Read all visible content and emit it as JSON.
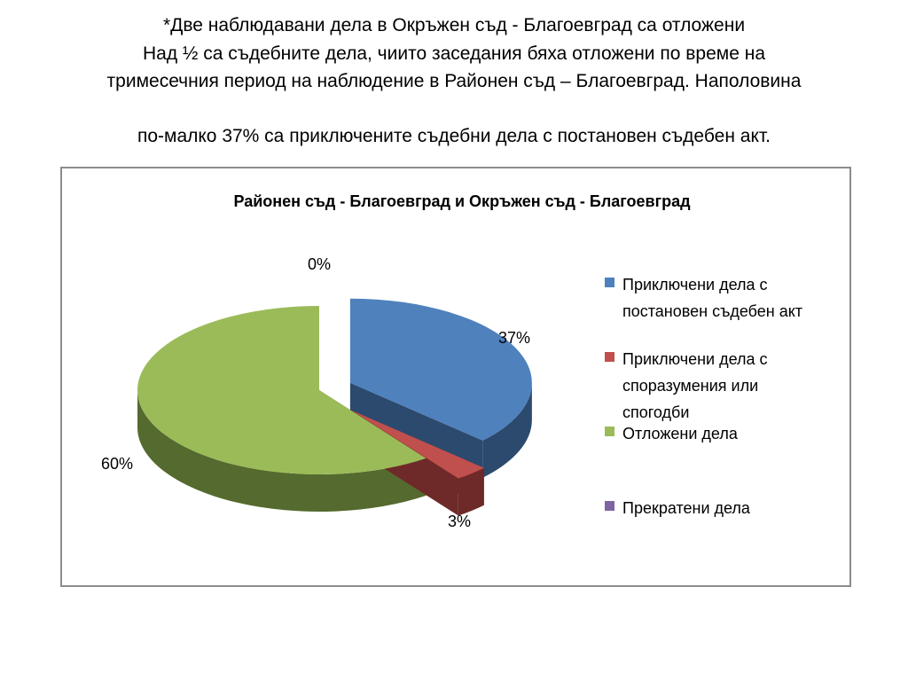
{
  "slide": {
    "line1": "*Две наблюдавани дела в Окръжен съд - Благоевград са отложени",
    "line2": "Над ½ са съдебните дела, чиито заседания бяха отложени по време на",
    "line3": "тримесечния период на наблюдение в Районен съд – Благоевград. Наполовина",
    "line4": "по-малко 37% са приключените съдебни дела с постановен съдебен акт."
  },
  "chart_data": {
    "type": "pie",
    "style": "3d-exploded",
    "title": "Районен съд - Благоевград и Окръжен съд - Благоевград",
    "legend_position": "right",
    "slices": [
      {
        "name": "Приключени дела с постановен съдебен акт",
        "legend_lines": [
          "Приключени дела с",
          "постановен съдебен акт"
        ],
        "value": 37,
        "label": "37%",
        "color": "#4f81bd",
        "side_color": "#2c4a6e"
      },
      {
        "name": "Приключени дела с споразумения или спогодби",
        "legend_lines": [
          "Приключени дела с",
          "споразумения или",
          "спогодби"
        ],
        "value": 3,
        "label": "3%",
        "color": "#c0504d",
        "side_color": "#6e2a28"
      },
      {
        "name": "Отложени дела",
        "legend_lines": [
          "Отложени дела"
        ],
        "value": 60,
        "label": "60%",
        "color": "#9bbb59",
        "side_color": "#556a2e"
      },
      {
        "name": "Прекратени дела",
        "legend_lines": [
          "Прекратени дела"
        ],
        "value": 0,
        "label": "0%",
        "color": "#8064a2",
        "side_color": "#4a3a60"
      }
    ]
  }
}
